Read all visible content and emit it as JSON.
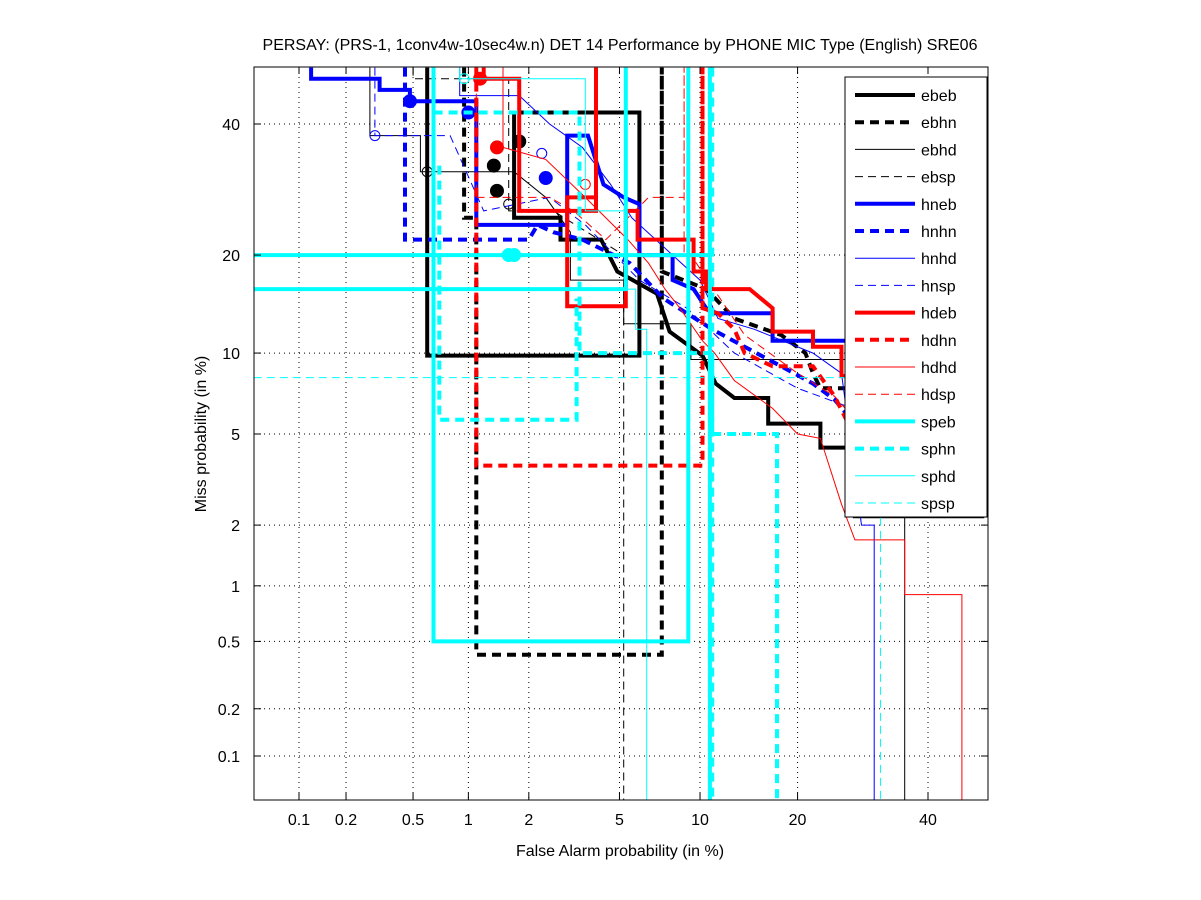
{
  "chart_data": {
    "type": "line",
    "title": "PERSAY: (PRS-1, 1conv4w-10sec4w.n) DET 14 Performance by PHONE MIC Type (English) SRE06",
    "xlabel": "False Alarm probability (in %)",
    "ylabel": "Miss probability (in %)",
    "scale": "normal-deviate (probit)",
    "xlim": [
      0.04,
      50
    ],
    "ylim": [
      0.05,
      50
    ],
    "xticks": [
      0.1,
      0.2,
      0.5,
      1,
      2,
      5,
      10,
      20,
      40
    ],
    "xtick_labels": [
      "0.1",
      "0.2",
      "0.5",
      "1",
      "2",
      "5",
      "10",
      "20",
      "40"
    ],
    "yticks": [
      0.1,
      0.2,
      0.5,
      1,
      2,
      5,
      10,
      20,
      40
    ],
    "ytick_labels": [
      "0.1",
      "0.2",
      "0.5",
      "1",
      "2",
      "5",
      "10",
      "20",
      "40"
    ],
    "grid": true,
    "legend_position": "top-right",
    "series": [
      {
        "name": "ebeb",
        "color": "#000000",
        "style": "solid",
        "weight": "thick",
        "points": [
          [
            0.6,
            50
          ],
          [
            0.6,
            9.8
          ],
          [
            6.0,
            9.8
          ],
          [
            6.0,
            42
          ],
          [
            1.7,
            42
          ],
          [
            1.7,
            25
          ],
          [
            2.8,
            25
          ],
          [
            2.8,
            22
          ],
          [
            4.2,
            22
          ],
          [
            4.9,
            18
          ],
          [
            7,
            15.5
          ],
          [
            7.8,
            11.8
          ],
          [
            10.2,
            9.8
          ],
          [
            11.3,
            7.8
          ],
          [
            13,
            6.9
          ],
          [
            16.5,
            6.9
          ],
          [
            16.5,
            5.5
          ],
          [
            23,
            5.5
          ],
          [
            23,
            4.4
          ],
          [
            28,
            4.4
          ],
          [
            28,
            2.2
          ],
          [
            50,
            2.2
          ]
        ],
        "markers": [
          [
            1.8,
            37
          ],
          [
            1.4,
            29
          ]
        ]
      },
      {
        "name": "ebhn",
        "color": "#000000",
        "style": "dashed",
        "weight": "thick",
        "points": [
          [
            0.95,
            50
          ],
          [
            0.95,
            25
          ],
          [
            1.1,
            25
          ],
          [
            1.1,
            0.42
          ],
          [
            7.3,
            0.42
          ],
          [
            7.3,
            50
          ],
          [
            7.3,
            18
          ],
          [
            10.5,
            16
          ],
          [
            13,
            13
          ],
          [
            18,
            11.5
          ],
          [
            21,
            10
          ],
          [
            22,
            8.5
          ],
          [
            23,
            7.5
          ],
          [
            50,
            7.5
          ]
        ],
        "markers": [
          [
            1.35,
            33
          ]
        ]
      },
      {
        "name": "ebhd",
        "color": "#000000",
        "style": "solid",
        "weight": "thin",
        "points": [
          [
            0.28,
            50
          ],
          [
            0.28,
            38
          ],
          [
            0.55,
            38
          ],
          [
            0.55,
            32
          ],
          [
            1.7,
            32
          ],
          [
            2.4,
            28
          ],
          [
            3.1,
            23
          ],
          [
            3.1,
            17
          ],
          [
            5.2,
            17
          ],
          [
            5.2,
            12.5
          ],
          [
            9.3,
            12.5
          ],
          [
            9.3,
            9.5
          ],
          [
            26,
            9.5
          ],
          [
            30,
            9.5
          ],
          [
            36,
            9.5
          ],
          [
            36,
            0.05
          ]
        ],
        "markers": [
          [
            0.6,
            32
          ]
        ]
      },
      {
        "name": "ebsp",
        "color": "#000000",
        "style": "dashed",
        "weight": "thin",
        "points": [
          [
            0.5,
            50
          ],
          [
            0.5,
            48
          ],
          [
            1.6,
            48
          ],
          [
            1.6,
            26
          ],
          [
            2.6,
            26
          ],
          [
            5.2,
            20
          ],
          [
            5.2,
            0.05
          ]
        ],
        "markers": [
          [
            1.6,
            27
          ]
        ]
      },
      {
        "name": "hneb",
        "color": "#0000ff",
        "style": "solid",
        "weight": "thick",
        "points": [
          [
            0.12,
            50
          ],
          [
            0.12,
            48
          ],
          [
            0.32,
            48
          ],
          [
            0.32,
            46
          ],
          [
            0.48,
            46
          ],
          [
            0.48,
            44
          ],
          [
            1.1,
            44
          ],
          [
            1.1,
            24
          ],
          [
            3.0,
            24
          ],
          [
            3.0,
            38
          ],
          [
            3.7,
            38
          ],
          [
            4.3,
            30
          ],
          [
            5.2,
            28
          ],
          [
            6,
            27
          ],
          [
            6,
            20
          ],
          [
            8,
            20
          ],
          [
            8,
            17
          ],
          [
            9.5,
            16
          ],
          [
            10.5,
            14
          ],
          [
            11,
            13.5
          ],
          [
            17,
            13.5
          ],
          [
            17,
            11
          ],
          [
            26,
            11
          ],
          [
            40,
            11
          ],
          [
            40,
            8.5
          ],
          [
            50,
            8.5
          ]
        ],
        "markers": [
          [
            0.48,
            44
          ],
          [
            2.4,
            31
          ]
        ]
      },
      {
        "name": "hnhn",
        "color": "#0000ff",
        "style": "dashed",
        "weight": "thick",
        "points": [
          [
            0.45,
            50
          ],
          [
            0.45,
            22
          ],
          [
            2.0,
            22
          ],
          [
            2.2,
            24
          ],
          [
            2.6,
            23
          ],
          [
            3.5,
            22
          ],
          [
            5.5,
            19
          ],
          [
            7.4,
            15
          ],
          [
            9,
            13.5
          ],
          [
            11,
            12
          ],
          [
            14,
            10.5
          ],
          [
            18,
            9.0
          ],
          [
            22,
            7.8
          ],
          [
            25,
            6.8
          ],
          [
            28,
            5.5
          ],
          [
            32,
            5.0
          ],
          [
            40,
            4.3
          ],
          [
            45,
            2.8
          ],
          [
            50,
            2.5
          ]
        ],
        "markers": [
          [
            1.0,
            42
          ]
        ]
      },
      {
        "name": "hnhd",
        "color": "#0000ff",
        "style": "solid",
        "weight": "thin",
        "points": [
          [
            0.9,
            50
          ],
          [
            0.9,
            45
          ],
          [
            1.8,
            45
          ],
          [
            2.5,
            40
          ],
          [
            3.5,
            36
          ],
          [
            4.6,
            30
          ],
          [
            5.6,
            25
          ],
          [
            8,
            20
          ],
          [
            10,
            17
          ],
          [
            11.5,
            13
          ],
          [
            15,
            12
          ],
          [
            22,
            10
          ],
          [
            26,
            8.5
          ],
          [
            29,
            2.0
          ],
          [
            31,
            2.0
          ],
          [
            31,
            0.05
          ]
        ],
        "markers": [
          [
            2.3,
            35
          ]
        ]
      },
      {
        "name": "hnsp",
        "color": "#0000ff",
        "style": "dashed",
        "weight": "thin",
        "points": [
          [
            0.3,
            50
          ],
          [
            0.3,
            38
          ],
          [
            0.8,
            38
          ],
          [
            1.2,
            26
          ],
          [
            2.5,
            28
          ],
          [
            3.6,
            24
          ],
          [
            6,
            17
          ],
          [
            9,
            14
          ],
          [
            13,
            10
          ],
          [
            20,
            7.5
          ],
          [
            30,
            6
          ],
          [
            40,
            4.5
          ],
          [
            50,
            4.5
          ]
        ],
        "markers": [
          [
            0.3,
            38
          ]
        ]
      },
      {
        "name": "hdeb",
        "color": "#ff0000",
        "style": "solid",
        "weight": "thick",
        "points": [
          [
            1.2,
            50
          ],
          [
            1.2,
            48
          ],
          [
            1.8,
            48
          ],
          [
            1.8,
            26
          ],
          [
            4.0,
            26
          ],
          [
            4.0,
            50
          ],
          [
            4.0,
            28
          ],
          [
            3.0,
            28
          ],
          [
            3.0,
            14.2
          ],
          [
            5.3,
            14.2
          ],
          [
            5.3,
            26
          ],
          [
            5.9,
            26
          ],
          [
            5.9,
            22
          ],
          [
            9.5,
            22
          ],
          [
            9.5,
            18
          ],
          [
            10.5,
            18
          ],
          [
            10.5,
            16
          ],
          [
            14.5,
            16
          ],
          [
            17,
            14
          ],
          [
            17,
            11.8
          ],
          [
            22,
            11.8
          ],
          [
            22,
            10.5
          ],
          [
            26,
            10.5
          ],
          [
            26,
            8.3
          ],
          [
            30,
            8.3
          ],
          [
            30,
            5.2
          ],
          [
            40,
            5.2
          ],
          [
            50,
            5.2
          ]
        ],
        "markers": [
          [
            1.15,
            48
          ]
        ]
      },
      {
        "name": "hdhn",
        "color": "#ff0000",
        "style": "dashed",
        "weight": "thick",
        "points": [
          [
            1.1,
            50
          ],
          [
            1.1,
            3.7
          ],
          [
            10.2,
            3.7
          ],
          [
            10.2,
            50
          ],
          [
            10.2,
            18
          ],
          [
            10.2,
            14
          ],
          [
            11.5,
            13.5
          ],
          [
            13,
            12
          ],
          [
            14,
            10
          ],
          [
            17,
            9
          ],
          [
            22,
            9
          ],
          [
            25,
            7
          ],
          [
            27,
            5.5
          ],
          [
            30,
            5.3
          ],
          [
            50,
            5.3
          ]
        ],
        "markers": [
          [
            1.4,
            36
          ]
        ]
      },
      {
        "name": "hdhd",
        "color": "#ff0000",
        "style": "solid",
        "weight": "thin",
        "points": [
          [
            1.5,
            50
          ],
          [
            1.5,
            36
          ],
          [
            2.4,
            34
          ],
          [
            3.6,
            28
          ],
          [
            5.4,
            22
          ],
          [
            6.5,
            19
          ],
          [
            7.5,
            16
          ],
          [
            8.5,
            14
          ],
          [
            10.2,
            11
          ],
          [
            11.2,
            10
          ],
          [
            13,
            8
          ],
          [
            17,
            6.3
          ],
          [
            20,
            5.0
          ],
          [
            23,
            4.8
          ],
          [
            26,
            2.5
          ],
          [
            28,
            1.7
          ],
          [
            36,
            1.7
          ],
          [
            36,
            0.9
          ],
          [
            46,
            0.9
          ],
          [
            46,
            0.05
          ]
        ],
        "markers": [
          [
            1.4,
            36
          ]
        ]
      },
      {
        "name": "hdsp",
        "color": "#ff0000",
        "style": "dashed",
        "weight": "thin",
        "points": [
          [
            1.1,
            50
          ],
          [
            1.1,
            28
          ],
          [
            2.5,
            28
          ],
          [
            3.2,
            26
          ],
          [
            4.4,
            22
          ],
          [
            6.5,
            28
          ],
          [
            8.8,
            28
          ],
          [
            8.8,
            50
          ],
          [
            8.8,
            20
          ],
          [
            9.3,
            20
          ],
          [
            14,
            11.5
          ],
          [
            20,
            8.5
          ],
          [
            25,
            7
          ],
          [
            30,
            5
          ],
          [
            50,
            5
          ]
        ],
        "markers": [
          [
            3.6,
            30
          ]
        ]
      },
      {
        "name": "speb",
        "color": "#00ffff",
        "style": "solid",
        "weight": "thick",
        "points": [
          [
            0.04,
            20
          ],
          [
            10.8,
            20
          ],
          [
            10.8,
            50
          ],
          [
            10.8,
            0.05
          ]
        ],
        "extra_segments": [
          [
            [
              0.04,
              16
            ],
            [
              5.3,
              16
            ],
            [
              5.3,
              50
            ]
          ],
          [
            [
              0.65,
              50
            ],
            [
              0.65,
              0.5
            ],
            [
              9.1,
              0.5
            ],
            [
              9.1,
              50
            ]
          ]
        ],
        "markers": [
          [
            1.6,
            20
          ],
          [
            1.7,
            20
          ]
        ]
      },
      {
        "name": "sphn",
        "color": "#00ffff",
        "style": "dashed",
        "weight": "thick",
        "points": [
          [
            0.65,
            50
          ],
          [
            0.65,
            42
          ],
          [
            3.4,
            42
          ],
          [
            3.4,
            10
          ],
          [
            11,
            10
          ],
          [
            11,
            5
          ],
          [
            17.5,
            5
          ],
          [
            17.5,
            0.05
          ]
        ],
        "extra_segments": [
          [
            [
              0.7,
              33
            ],
            [
              0.7,
              5.7
            ],
            [
              3.3,
              5.7
            ],
            [
              3.3,
              15
            ]
          ],
          [
            [
              11.0,
              50
            ],
            [
              11.0,
              0.05
            ]
          ]
        ],
        "markers": []
      },
      {
        "name": "sphd",
        "color": "#00ffff",
        "style": "solid",
        "weight": "thin",
        "points": [
          [
            0.9,
            50
          ],
          [
            0.9,
            48
          ],
          [
            3.6,
            48
          ],
          [
            3.6,
            26
          ],
          [
            5.3,
            26
          ],
          [
            5.3,
            16
          ],
          [
            5.8,
            16
          ],
          [
            5.8,
            12
          ],
          [
            6.4,
            12
          ],
          [
            6.4,
            0.05
          ]
        ],
        "markers": [
          [
            0.95,
            48
          ]
        ]
      },
      {
        "name": "spsp",
        "color": "#00ffff",
        "style": "dashed",
        "weight": "thin",
        "points": [
          [
            0.04,
            8.2
          ],
          [
            26,
            8.2
          ],
          [
            32,
            8.2
          ],
          [
            32,
            0.05
          ]
        ],
        "markers": []
      }
    ]
  }
}
